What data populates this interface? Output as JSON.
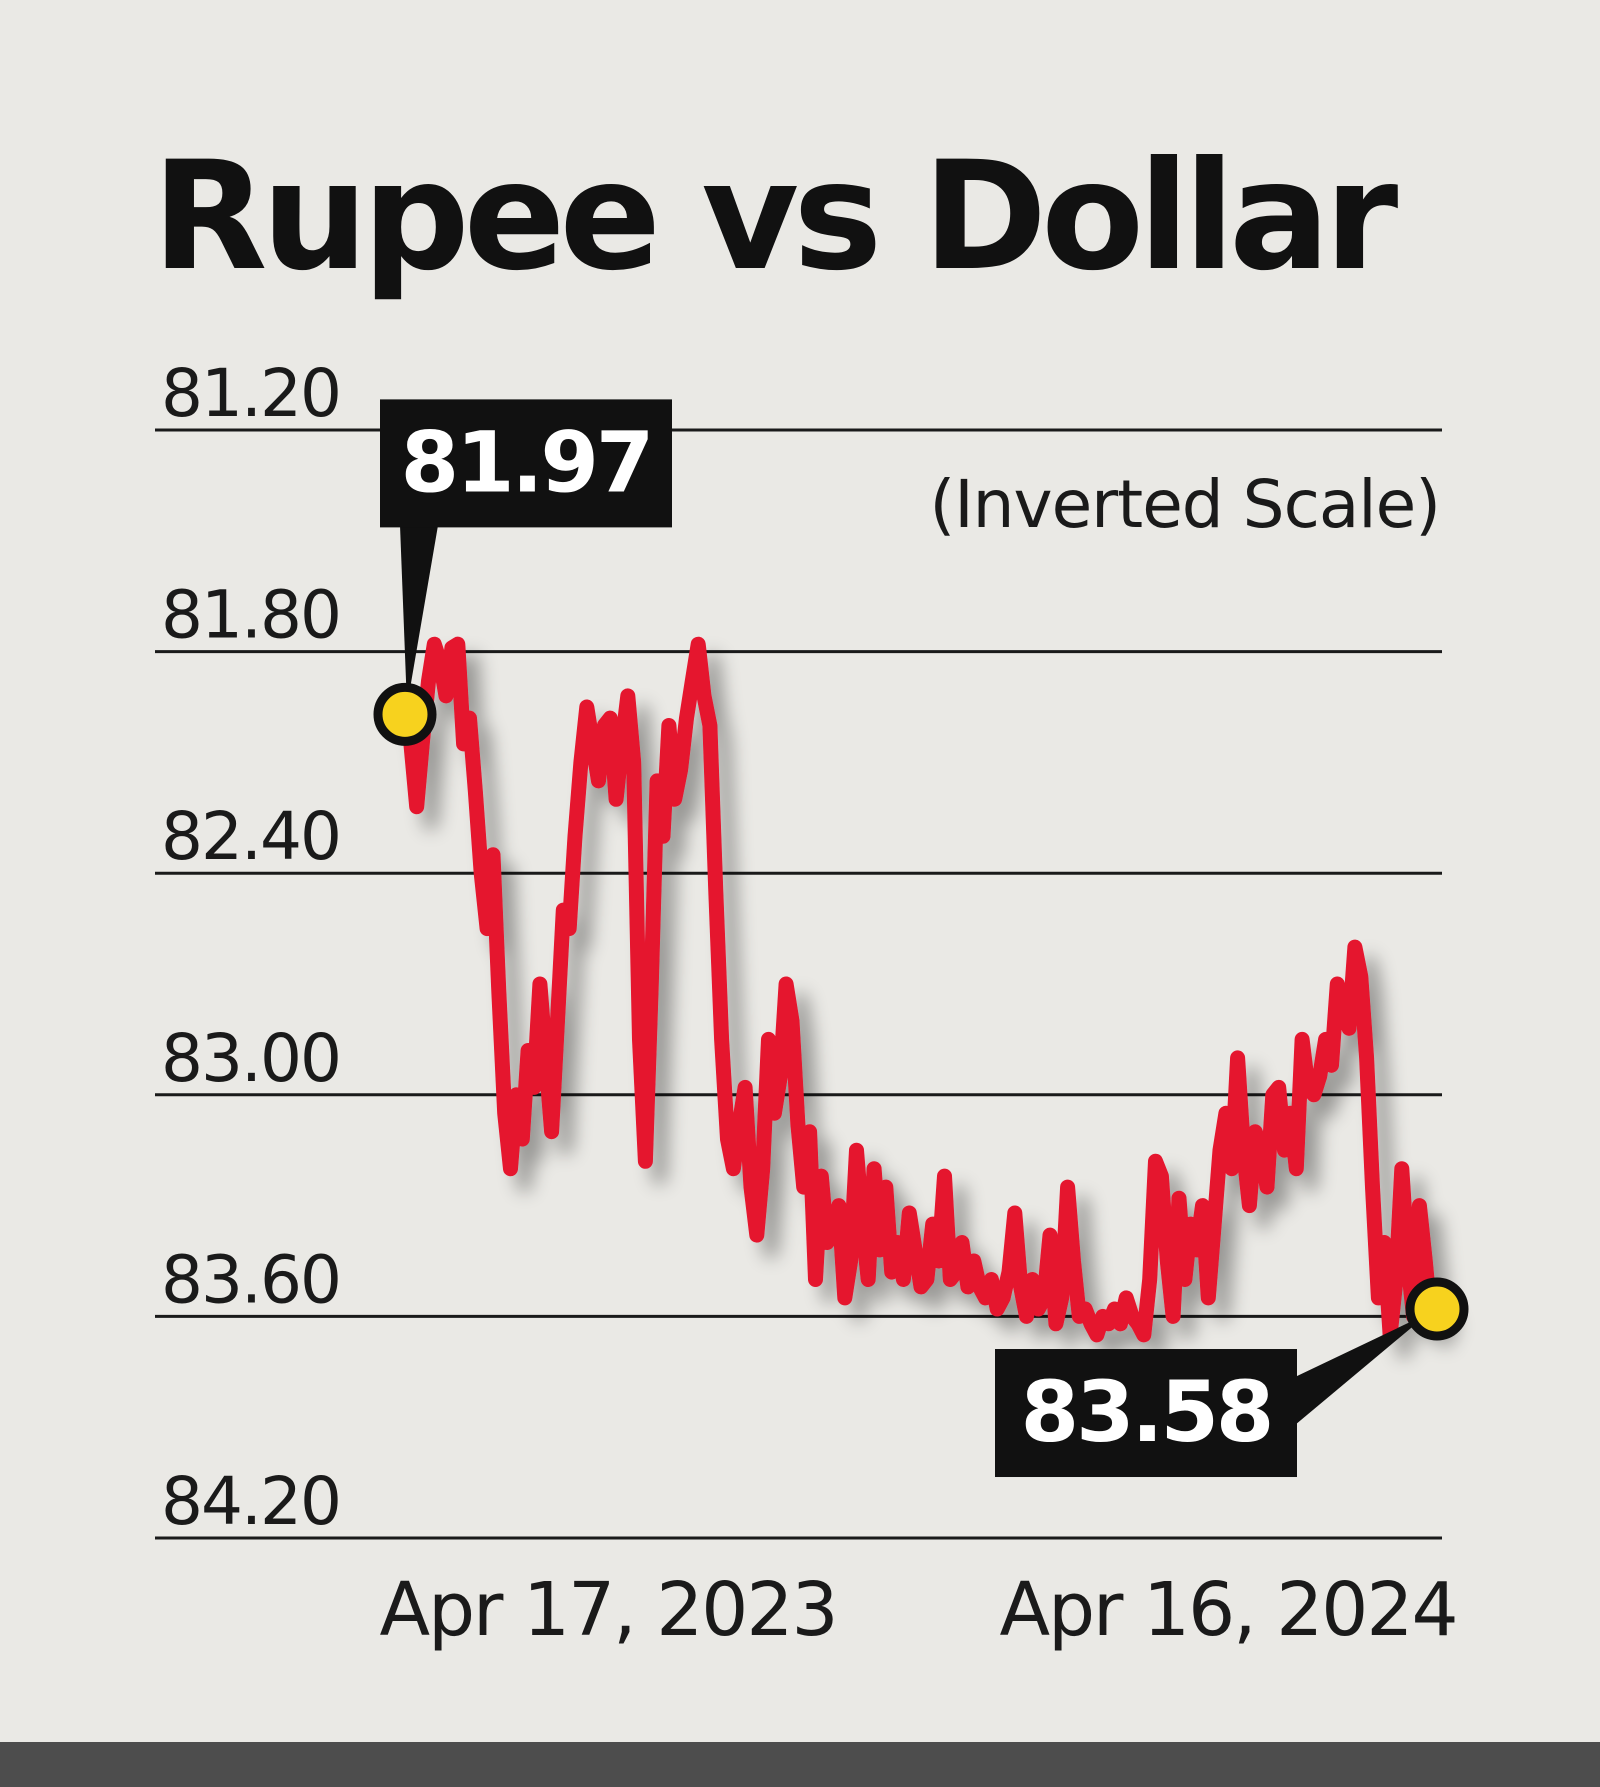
{
  "chart_data": {
    "type": "line",
    "title": "Rupee vs Dollar",
    "note": "(Inverted Scale)",
    "inverted_y": true,
    "ylim": [
      81.2,
      84.2
    ],
    "y_ticks": [
      "81.20",
      "81.80",
      "82.40",
      "83.00",
      "83.60",
      "84.20"
    ],
    "y_tick_values": [
      81.2,
      81.8,
      82.4,
      83.0,
      83.6,
      84.2
    ],
    "x_labels": [
      "Apr 17, 2023",
      "Apr 16, 2024"
    ],
    "grid": true,
    "line_color": "#e5132f",
    "marker_color": "#f7d21e",
    "callouts": [
      {
        "label": "81.97",
        "value": 81.97,
        "point": "start"
      },
      {
        "label": "83.58",
        "value": 83.58,
        "point": "end"
      }
    ],
    "series": [
      {
        "values": [
          81.97,
          82.05,
          82.22,
          82.04,
          81.88,
          81.78,
          81.83,
          81.92,
          81.79,
          81.78,
          82.05,
          81.98,
          82.18,
          82.4,
          82.55,
          82.35,
          82.72,
          83.05,
          83.2,
          83.0,
          83.12,
          82.88,
          82.98,
          82.7,
          82.9,
          83.1,
          82.8,
          82.5,
          82.55,
          82.3,
          82.1,
          81.95,
          82.05,
          82.15,
          82.0,
          81.98,
          82.2,
          82.05,
          81.92,
          82.1,
          82.85,
          83.18,
          82.7,
          82.15,
          82.3,
          82.0,
          82.2,
          82.12,
          81.98,
          81.88,
          81.78,
          81.92,
          82.0,
          82.45,
          82.85,
          83.12,
          83.2,
          83.08,
          82.98,
          83.25,
          83.38,
          83.2,
          82.85,
          83.05,
          82.95,
          82.7,
          82.8,
          83.08,
          83.25,
          83.1,
          83.5,
          83.22,
          83.4,
          83.35,
          83.3,
          83.55,
          83.45,
          83.15,
          83.35,
          83.5,
          83.2,
          83.42,
          83.25,
          83.48,
          83.4,
          83.5,
          83.32,
          83.42,
          83.52,
          83.5,
          83.35,
          83.45,
          83.22,
          83.5,
          83.48,
          83.4,
          83.52,
          83.45,
          83.52,
          83.55,
          83.5,
          83.58,
          83.55,
          83.48,
          83.32,
          83.52,
          83.6,
          83.5,
          83.58,
          83.55,
          83.38,
          83.62,
          83.55,
          83.25,
          83.45,
          83.6,
          83.58,
          83.62,
          83.65,
          83.6,
          83.62,
          83.58,
          83.62,
          83.55,
          83.6,
          83.62,
          83.65,
          83.5,
          83.18,
          83.22,
          83.45,
          83.6,
          83.28,
          83.5,
          83.35,
          83.42,
          83.3,
          83.55,
          83.35,
          83.15,
          83.05,
          83.2,
          82.9,
          83.15,
          83.3,
          83.1,
          83.15,
          83.25,
          83.0,
          82.98,
          83.15,
          83.05,
          83.2,
          82.85,
          82.98,
          83.0,
          82.95,
          82.85,
          82.92,
          82.7,
          82.78,
          82.82,
          82.6,
          82.68,
          82.9,
          83.25,
          83.55,
          83.4,
          83.65,
          83.5,
          83.2,
          83.45,
          83.6,
          83.3,
          83.45,
          83.62,
          83.58
        ]
      }
    ]
  }
}
